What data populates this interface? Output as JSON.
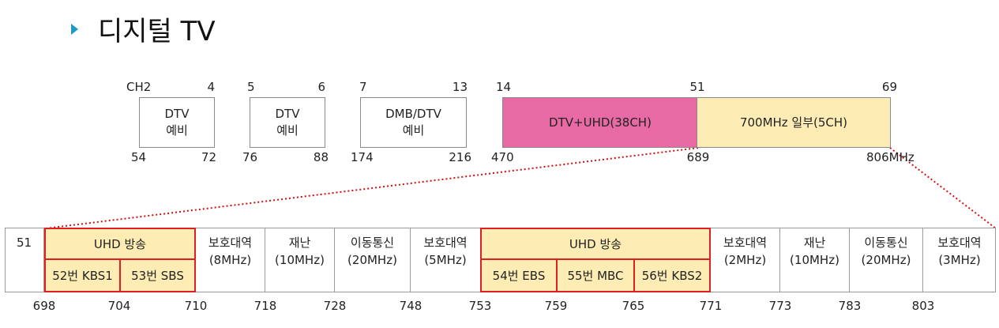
{
  "title": "디지털 TV",
  "colors": {
    "bullet": "#1e9ac6",
    "uhd_pink": "#e86aa4",
    "highlight": "#fdecb4",
    "border_red": "#e02020",
    "dotted": "#d01010"
  },
  "top_band": {
    "boxes": [
      {
        "lines": [
          "DTV",
          "예비"
        ],
        "ch_start": "CH2",
        "ch_end": "4",
        "f_start": "54",
        "f_end": "72"
      },
      {
        "lines": [
          "DTV",
          "예비"
        ],
        "ch_start": "5",
        "ch_end": "6",
        "f_start": "76",
        "f_end": "88"
      },
      {
        "lines": [
          "DMB/DTV",
          "예비"
        ],
        "ch_start": "7",
        "ch_end": "13",
        "f_start": "174",
        "f_end": "216"
      }
    ],
    "uhd": {
      "label": "DTV+UHD(38CH)",
      "ch_start": "14",
      "ch_end": "51",
      "f_start": "470",
      "f_end": "689"
    },
    "mhz700": {
      "label": "700MHz 일부(5CH)",
      "ch_end": "69",
      "f_end": "806MHz"
    }
  },
  "bottom_band": {
    "start_cell": "51",
    "uhd_group_1": {
      "label": "UHD 방송",
      "subs": [
        "52번 KBS1",
        "53번 SBS"
      ]
    },
    "uhd_group_2": {
      "label": "UHD 방송",
      "subs": [
        "54번 EBS",
        "55번 MBC",
        "56번 KBS2"
      ]
    },
    "cells": [
      {
        "line1": "보호대역",
        "line2": "(8MHz)"
      },
      {
        "line1": "재난",
        "line2": "(10MHz)"
      },
      {
        "line1": "이동통신",
        "line2": "(20MHz)"
      },
      {
        "line1": "보호대역",
        "line2": "(5MHz)"
      },
      {
        "line1": "보호대역",
        "line2": "(2MHz)"
      },
      {
        "line1": "재난",
        "line2": "(10MHz)"
      },
      {
        "line1": "이동통신",
        "line2": "(20MHz)"
      },
      {
        "line1": "보호대역",
        "line2": "(3MHz)"
      }
    ],
    "freqs": [
      "698",
      "704",
      "710",
      "718",
      "728",
      "748",
      "753",
      "759",
      "765",
      "771",
      "773",
      "783",
      "803"
    ]
  }
}
